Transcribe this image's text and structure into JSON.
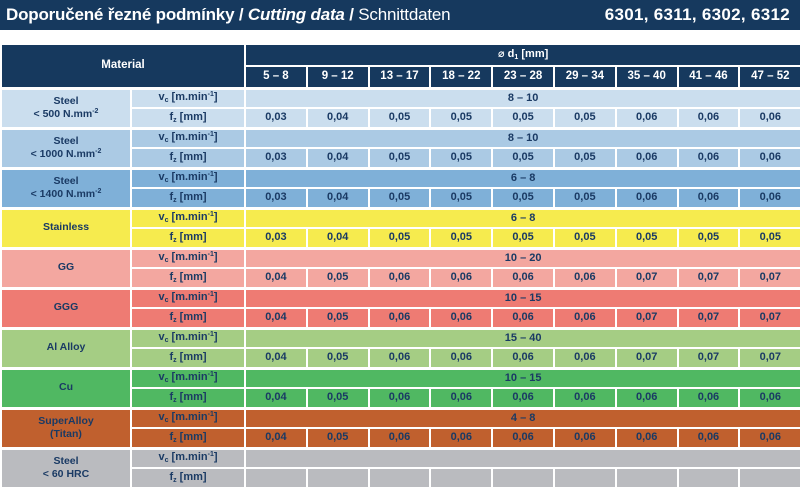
{
  "title_bar": {
    "title_cz": "Doporučené řezné podmínky",
    "sep1": " / ",
    "title_en": "Cutting data",
    "sep2": " / ",
    "title_de": "Schnittdaten",
    "product_codes": "6301, 6311, 6302, 6312"
  },
  "colors": {
    "header_navy": "#16395e",
    "text_navy": "#1a3a64",
    "border_white": "#ffffff"
  },
  "table": {
    "material_header": "Material",
    "diameter_header": {
      "prefix": "⌀ d",
      "sub": "1",
      "suffix": " [mm]"
    },
    "diameter_ranges": [
      "5 – 8",
      "9 – 12",
      "13 – 17",
      "18 – 22",
      "23 – 28",
      "29 – 34",
      "35 – 40",
      "41 – 46",
      "47 – 52"
    ],
    "param_labels": {
      "vc": {
        "base": "v",
        "sub": "c",
        "pre_unit": " [m.min",
        "sup": "-1",
        "post": "]"
      },
      "fz": {
        "base": "f",
        "sub": "z",
        "pre_unit": " [mm]",
        "sup": "",
        "post": ""
      }
    },
    "rows": [
      {
        "material": {
          "lines": [
            {
              "text": "Steel"
            },
            {
              "text": "< 500 N.mm",
              "sup": "-2"
            }
          ]
        },
        "color": "#cbdeee",
        "vc": "8 – 10",
        "fz": [
          "0,03",
          "0,04",
          "0,05",
          "0,05",
          "0,05",
          "0,05",
          "0,06",
          "0,06",
          "0,06"
        ]
      },
      {
        "material": {
          "lines": [
            {
              "text": "Steel"
            },
            {
              "text": "< 1000 N.mm",
              "sup": "-2"
            }
          ]
        },
        "color": "#abcae4",
        "vc": "8 – 10",
        "fz": [
          "0,03",
          "0,04",
          "0,05",
          "0,05",
          "0,05",
          "0,05",
          "0,06",
          "0,06",
          "0,06"
        ]
      },
      {
        "material": {
          "lines": [
            {
              "text": "Steel"
            },
            {
              "text": "< 1400 N.mm",
              "sup": "-2"
            }
          ]
        },
        "color": "#7fb0d8",
        "vc": "6 – 8",
        "fz": [
          "0,03",
          "0,04",
          "0,05",
          "0,05",
          "0,05",
          "0,05",
          "0,06",
          "0,06",
          "0,06"
        ]
      },
      {
        "material": {
          "lines": [
            {
              "text": "Stainless"
            }
          ]
        },
        "color": "#f6eb4e",
        "vc": "6 – 8",
        "fz": [
          "0,03",
          "0,04",
          "0,05",
          "0,05",
          "0,05",
          "0,05",
          "0,05",
          "0,05",
          "0,05"
        ]
      },
      {
        "material": {
          "lines": [
            {
              "text": "GG"
            }
          ]
        },
        "color": "#f3a7a0",
        "vc": "10 – 20",
        "fz": [
          "0,04",
          "0,05",
          "0,06",
          "0,06",
          "0,06",
          "0,06",
          "0,07",
          "0,07",
          "0,07"
        ]
      },
      {
        "material": {
          "lines": [
            {
              "text": "GGG"
            }
          ]
        },
        "color": "#ee7b73",
        "vc": "10 – 15",
        "fz": [
          "0,04",
          "0,05",
          "0,06",
          "0,06",
          "0,06",
          "0,06",
          "0,07",
          "0,07",
          "0,07"
        ]
      },
      {
        "material": {
          "lines": [
            {
              "text": "Al Alloy"
            }
          ]
        },
        "color": "#a5cd84",
        "vc": "15 – 40",
        "fz": [
          "0,04",
          "0,05",
          "0,06",
          "0,06",
          "0,06",
          "0,06",
          "0,07",
          "0,07",
          "0,07"
        ]
      },
      {
        "material": {
          "lines": [
            {
              "text": "Cu"
            }
          ]
        },
        "color": "#50b862",
        "vc": "10 – 15",
        "fz": [
          "0,04",
          "0,05",
          "0,06",
          "0,06",
          "0,06",
          "0,06",
          "0,06",
          "0,06",
          "0,06"
        ]
      },
      {
        "material": {
          "lines": [
            {
              "text": "SuperAlloy"
            },
            {
              "text": "(Titan)"
            }
          ]
        },
        "color": "#c0602e",
        "vc": "4 – 8",
        "fz": [
          "0,04",
          "0,05",
          "0,06",
          "0,06",
          "0,06",
          "0,06",
          "0,06",
          "0,06",
          "0,06"
        ]
      },
      {
        "material": {
          "lines": [
            {
              "text": "Steel"
            },
            {
              "text": "< 60 HRC"
            }
          ]
        },
        "color": "#babbbf",
        "vc": "",
        "fz": [
          "",
          "",
          "",
          "",
          "",
          "",
          "",
          "",
          ""
        ]
      }
    ]
  }
}
